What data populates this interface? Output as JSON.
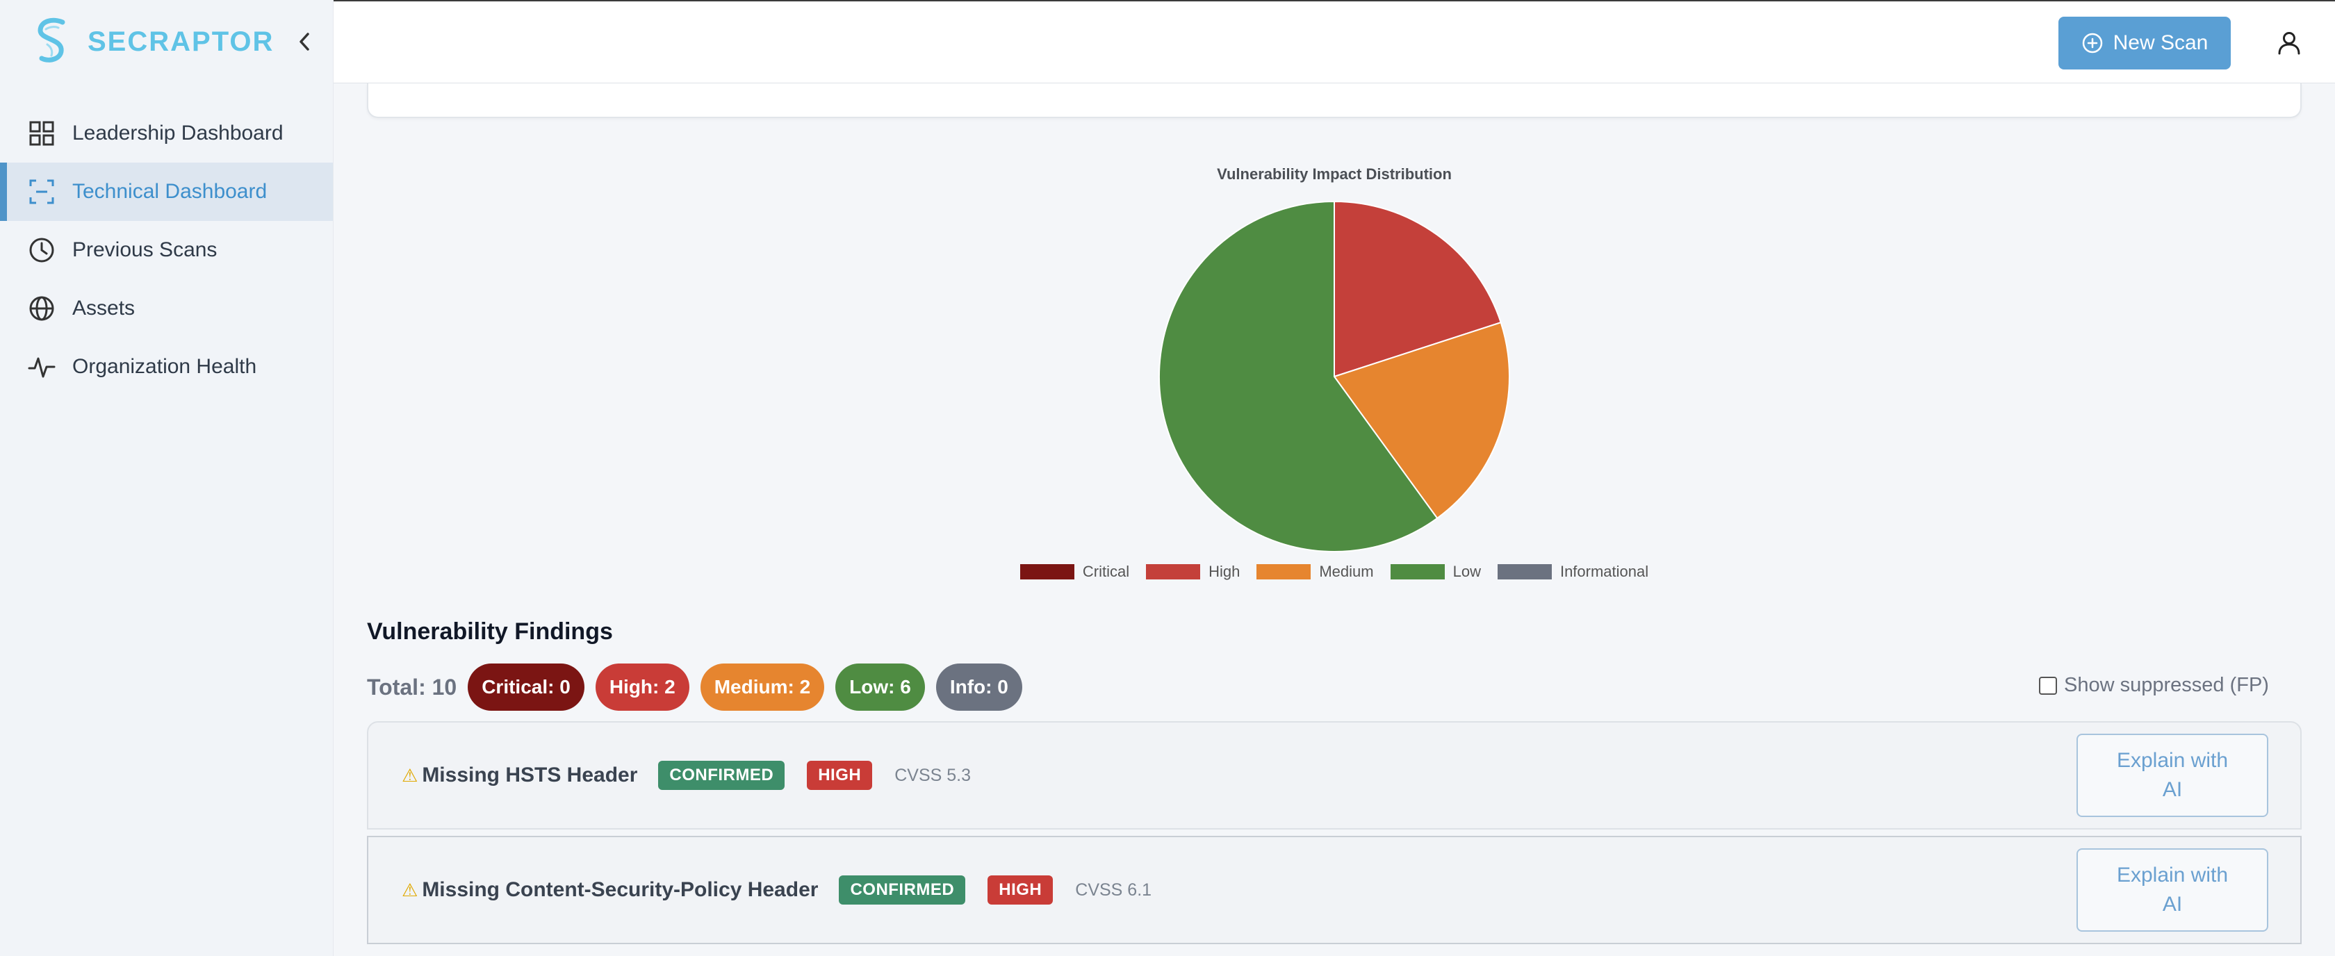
{
  "brand": {
    "name": "SECRAPTOR",
    "color": "#5fc3e6"
  },
  "sidebar": {
    "items": [
      {
        "label": "Leadership Dashboard",
        "icon": "grid-icon",
        "active": false
      },
      {
        "label": "Technical Dashboard",
        "icon": "scan-frame-icon",
        "active": true
      },
      {
        "label": "Previous Scans",
        "icon": "clock-icon",
        "active": false
      },
      {
        "label": "Assets",
        "icon": "globe-icon",
        "active": false
      },
      {
        "label": "Organization Health",
        "icon": "activity-icon",
        "active": false
      }
    ]
  },
  "header": {
    "new_scan_label": "New Scan",
    "user_icon": "user-icon"
  },
  "chart_data": {
    "type": "pie",
    "title": "Vulnerability Impact Distribution",
    "categories": [
      "Critical",
      "High",
      "Medium",
      "Low",
      "Informational"
    ],
    "values": [
      0,
      2,
      2,
      6,
      0
    ],
    "colors": [
      "#7b1513",
      "#c4403a",
      "#e6852f",
      "#4f8c42",
      "#6b7280"
    ],
    "legend_position": "bottom"
  },
  "findings_section": {
    "title": "Vulnerability Findings",
    "total_label": "Total: 10",
    "pills": [
      {
        "label": "Critical: 0",
        "color": "#7b1513"
      },
      {
        "label": "High: 2",
        "color": "#c93c37"
      },
      {
        "label": "Medium: 2",
        "color": "#e6852f"
      },
      {
        "label": "Low: 6",
        "color": "#4f8c42"
      },
      {
        "label": "Info: 0",
        "color": "#6b7280"
      }
    ],
    "show_suppressed_label": "Show suppressed (FP)"
  },
  "findings": [
    {
      "title": "Missing HSTS Header",
      "status": "CONFIRMED",
      "severity": "HIGH",
      "cvss": "CVSS 5.3",
      "action_label": "Explain with AI"
    },
    {
      "title": "Missing Content-Security-Policy Header",
      "status": "CONFIRMED",
      "severity": "HIGH",
      "cvss": "CVSS 6.1",
      "action_label": "Explain with AI"
    }
  ]
}
